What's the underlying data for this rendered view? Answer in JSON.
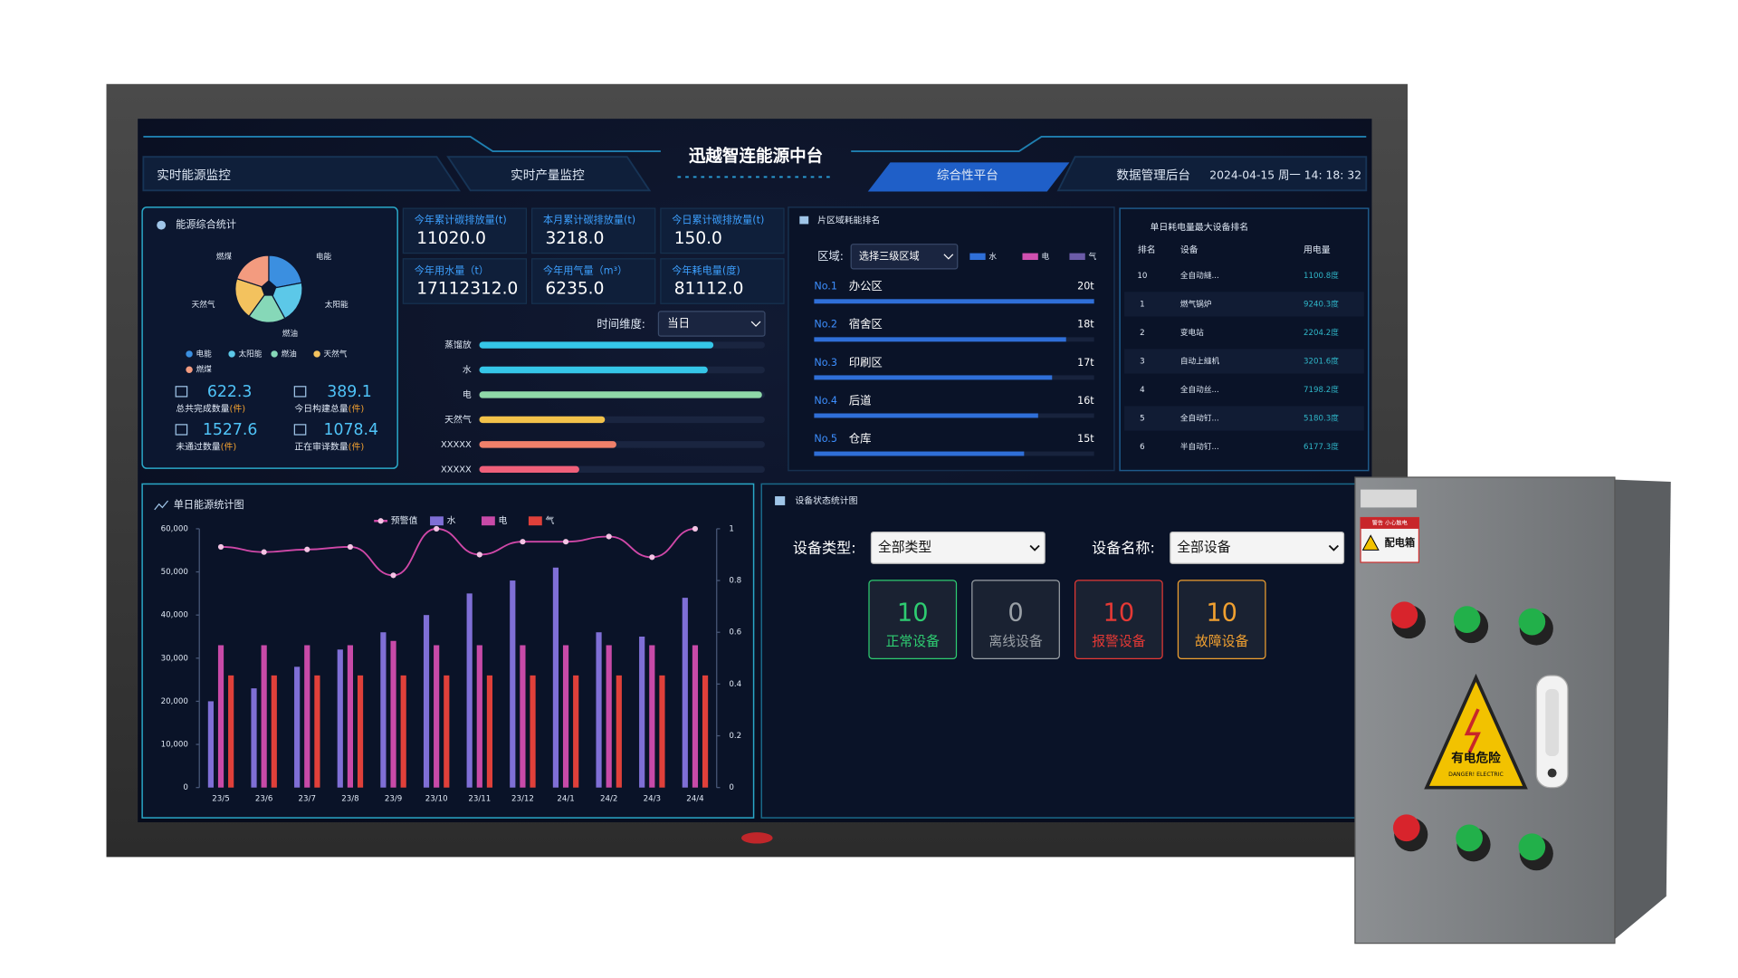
{
  "header": {
    "title": "迅越智连能源中台",
    "nav": [
      "实时能源监控",
      "实时产量监控",
      "综合性平台",
      "数据管理后台"
    ],
    "datetime": "2024-04-15 周一 14: 18: 32"
  },
  "kpis": [
    {
      "label": "今年累计碳排放量(t)",
      "value": "11020.0"
    },
    {
      "label": "本月累计碳排放量(t)",
      "value": "3218.0"
    },
    {
      "label": "今日累计碳排放量(t)",
      "value": "150.0"
    },
    {
      "label": "今年用水量（t）",
      "value": "17112312.0"
    },
    {
      "label": "今年用气量（m³）",
      "value": "6235.0"
    },
    {
      "label": "今年耗电量(度)",
      "value": "81112.0"
    }
  ],
  "stats": [
    {
      "value": "622.3",
      "label": "总共完成数量",
      "unit": "(件)"
    },
    {
      "value": "389.1",
      "label": "今日构建总量",
      "unit": "(件)"
    },
    {
      "value": "1527.6",
      "label": "未通过数量",
      "unit": "(件)"
    },
    {
      "value": "1078.4",
      "label": "正在审译数量",
      "unit": "(件)"
    }
  ],
  "consumption_filter": {
    "label": "时间维度:",
    "value": "当日"
  },
  "area_filter": {
    "label": "区域:",
    "value": "选择三级区域"
  },
  "device_ranking": {
    "title": "单日耗电量最大设备排名",
    "columns": [
      "排名",
      "设备",
      "用电量"
    ],
    "rows": [
      [
        "10",
        "全自动縫...",
        "1100.8度"
      ],
      [
        "1",
        "燃气锅炉",
        "9240.3度"
      ],
      [
        "2",
        "变电站",
        "2204.2度"
      ],
      [
        "3",
        "自动上縫机",
        "3201.6度"
      ],
      [
        "4",
        "全自动丝...",
        "7198.2度"
      ],
      [
        "5",
        "全自动钉...",
        "5180.3度"
      ],
      [
        "6",
        "半自动钉...",
        "6177.3度"
      ]
    ]
  },
  "device_status": {
    "title": "设备状态统计图",
    "type_label": "设备类型:",
    "type_value": "全部类型",
    "name_label": "设备名称:",
    "name_value": "全部设备",
    "cards": [
      {
        "value": 10,
        "label": "正常设备",
        "color": "#2ecc71"
      },
      {
        "value": 0,
        "label": "离线设备",
        "color": "#9aa0a6"
      },
      {
        "value": 10,
        "label": "报警设备",
        "color": "#e53935"
      },
      {
        "value": 10,
        "label": "故障设备",
        "color": "#f0a030"
      }
    ]
  },
  "cabinet": {
    "sign": "配电箱",
    "warning": "警告 小心触电",
    "danger": "有电危险",
    "danger_en": "DANGER! ELECTRIC"
  },
  "chart_data": [
    {
      "type": "pie",
      "title": "能源综合统计",
      "categories": [
        "电能",
        "太阳能",
        "燃油",
        "天然气",
        "燃煤"
      ],
      "values": [
        22,
        20,
        18,
        20,
        20
      ],
      "colors": [
        "#3b8fe0",
        "#5cc8e8",
        "#86d8b8",
        "#f3c25e",
        "#f39b7f"
      ]
    },
    {
      "type": "hbar",
      "categories": [
        "蒸馏放",
        "水",
        "电",
        "天然气",
        "XXXXX",
        "XXXXX"
      ],
      "values": [
        82,
        80,
        99,
        44,
        48,
        35
      ],
      "xlim": [
        0,
        100
      ],
      "colors": [
        "#35c6e8",
        "#35c6e8",
        "#8fd8a8",
        "#f2c24a",
        "#f0806a",
        "#f0607a"
      ]
    },
    {
      "type": "rank",
      "title": "片区域耗能排名",
      "ranks": [
        "No.1",
        "No.2",
        "No.3",
        "No.4",
        "No.5"
      ],
      "categories": [
        "办公区",
        "宿舍区",
        "印刷区",
        "后道",
        "仓库"
      ],
      "values": [
        20,
        18,
        17,
        16,
        15
      ],
      "value_labels": [
        "20t",
        "18t",
        "17t",
        "16t",
        "15t"
      ],
      "xlim": [
        0,
        20
      ],
      "color": "#2f6fd8",
      "legend": [
        {
          "name": "水",
          "color": "#2f6fd8"
        },
        {
          "name": "电",
          "color": "#d050b0"
        },
        {
          "name": "气",
          "color": "#6b5ba8"
        }
      ]
    },
    {
      "type": "combo",
      "title": "单日能源统计图",
      "categories": [
        "23/5",
        "23/6",
        "23/7",
        "23/8",
        "23/9",
        "23/10",
        "23/11",
        "23/12",
        "24/1",
        "24/2",
        "24/3",
        "24/4"
      ],
      "ylim": [
        0,
        60000
      ],
      "yticks": [
        0,
        {
          "value": 10000,
          "label": "10,000"
        },
        {
          "value": 20000,
          "label": "20,000"
        },
        {
          "value": 30000,
          "label": "30,000"
        },
        {
          "value": 40000,
          "label": "40,000"
        },
        {
          "value": 50000,
          "label": "50,000"
        },
        {
          "value": 60000,
          "label": "60,000"
        }
      ],
      "y2lim": [
        0,
        1
      ],
      "y2ticks": [
        0,
        0.2,
        0.4,
        0.6,
        0.8,
        1
      ],
      "series": [
        {
          "name": "预警值",
          "type": "line",
          "axis": "y2",
          "color": "#d048a8",
          "values": [
            0.93,
            0.91,
            0.92,
            0.93,
            0.82,
            1,
            0.9,
            0.95,
            0.95,
            0.97,
            0.89,
            1
          ]
        },
        {
          "name": "水",
          "type": "bar",
          "color": "#7f6fd6",
          "values": [
            20000,
            23000,
            28000,
            32000,
            36000,
            40000,
            45000,
            48000,
            51000,
            36000,
            35000,
            44000
          ]
        },
        {
          "name": "电",
          "type": "bar",
          "color": "#c84aa8",
          "values": [
            33000,
            33000,
            33000,
            33000,
            34000,
            33000,
            33000,
            33000,
            33000,
            33000,
            33000,
            33000
          ]
        },
        {
          "name": "气",
          "type": "bar",
          "color": "#e0403a",
          "values": [
            26000,
            26000,
            26000,
            26000,
            26000,
            26000,
            26000,
            26000,
            26000,
            26000,
            26000,
            26000
          ]
        }
      ]
    }
  ]
}
